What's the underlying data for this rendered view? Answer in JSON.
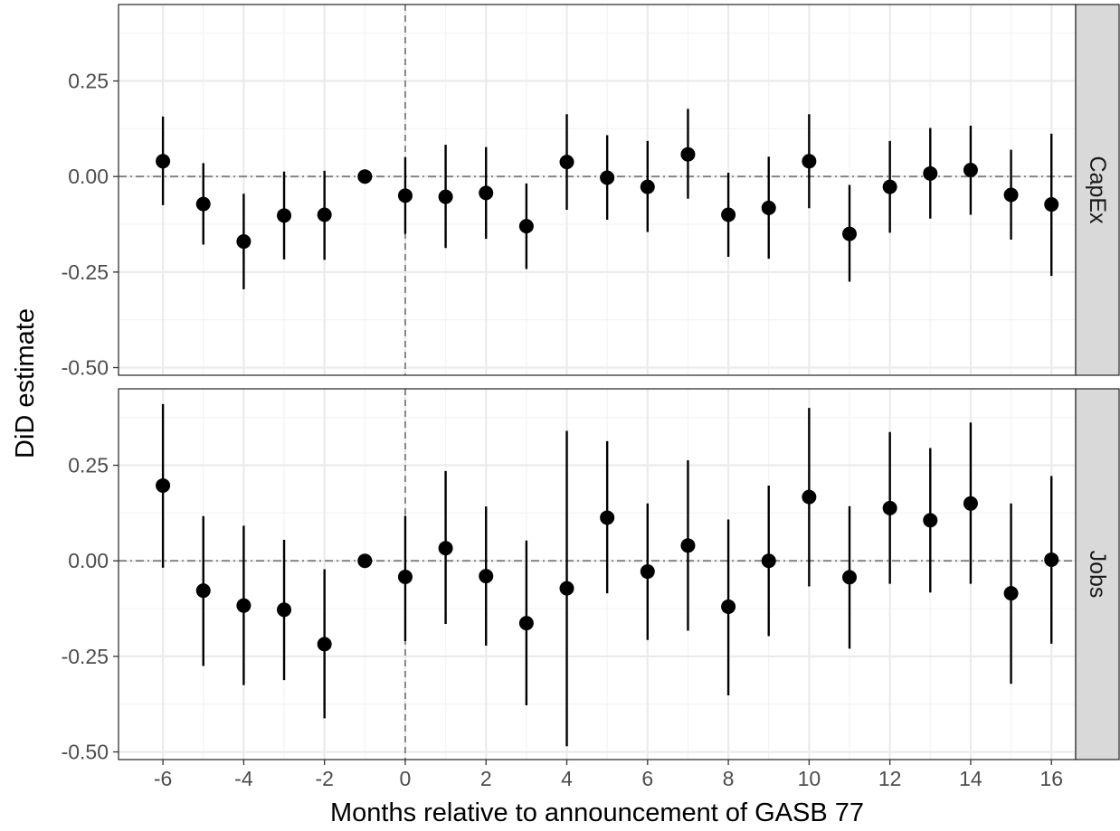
{
  "chart_data": {
    "type": "scatter",
    "subtype": "point-range faceted",
    "xlabel": "Months relative to announcement of GASB 77",
    "ylabel": "DiD estimate",
    "x_ticks": [
      -6,
      -4,
      -2,
      0,
      2,
      4,
      6,
      8,
      10,
      12,
      14,
      16
    ],
    "y_ticks": [
      -0.5,
      -0.25,
      0.0,
      0.25
    ],
    "y_tick_labels": [
      "-0.50",
      "-0.25",
      "0.00",
      "0.25"
    ],
    "x_tick_labels": [
      "-6",
      "-4",
      "-2",
      "0",
      "2",
      "4",
      "6",
      "8",
      "10",
      "12",
      "14",
      "16"
    ],
    "xlim": [
      -7.1,
      16.6
    ],
    "ylim": [
      -0.52,
      0.45
    ],
    "grid": true,
    "reference_lines": {
      "vertical_x": 0,
      "horizontal_y": 0
    },
    "panels": [
      {
        "name": "CapEx",
        "x": [
          -6,
          -5,
          -4,
          -3,
          -2,
          -1,
          0,
          1,
          2,
          3,
          4,
          5,
          6,
          7,
          8,
          9,
          10,
          11,
          12,
          13,
          14,
          15,
          16
        ],
        "estimate": [
          0.04,
          -0.072,
          -0.17,
          -0.102,
          -0.1,
          0.0,
          -0.05,
          -0.053,
          -0.043,
          -0.13,
          0.038,
          -0.003,
          -0.027,
          0.058,
          -0.1,
          -0.082,
          0.04,
          -0.15,
          -0.027,
          0.008,
          0.017,
          -0.048,
          -0.073
        ],
        "lower": [
          -0.075,
          -0.178,
          -0.295,
          -0.217,
          -0.218,
          0.0,
          -0.15,
          -0.187,
          -0.163,
          -0.242,
          -0.087,
          -0.113,
          -0.145,
          -0.058,
          -0.21,
          -0.215,
          -0.083,
          -0.275,
          -0.147,
          -0.11,
          -0.1,
          -0.165,
          -0.26
        ],
        "upper": [
          0.157,
          0.035,
          -0.045,
          0.013,
          0.015,
          0.0,
          0.05,
          0.083,
          0.077,
          -0.018,
          0.163,
          0.108,
          0.093,
          0.177,
          0.01,
          0.052,
          0.163,
          -0.022,
          0.093,
          0.127,
          0.133,
          0.07,
          0.112
        ]
      },
      {
        "name": "Jobs",
        "x": [
          -6,
          -5,
          -4,
          -3,
          -2,
          -1,
          0,
          1,
          2,
          3,
          4,
          5,
          6,
          7,
          8,
          9,
          10,
          11,
          12,
          13,
          14,
          15,
          16
        ],
        "estimate": [
          0.197,
          -0.078,
          -0.117,
          -0.128,
          -0.218,
          0.0,
          -0.042,
          0.033,
          -0.04,
          -0.163,
          -0.072,
          0.113,
          -0.028,
          0.04,
          -0.12,
          0.0,
          0.167,
          -0.043,
          0.138,
          0.106,
          0.15,
          -0.085,
          0.003
        ],
        "lower": [
          -0.018,
          -0.275,
          -0.325,
          -0.312,
          -0.412,
          0.0,
          -0.21,
          -0.165,
          -0.222,
          -0.378,
          -0.485,
          -0.085,
          -0.207,
          -0.183,
          -0.352,
          -0.197,
          -0.067,
          -0.23,
          -0.06,
          -0.083,
          -0.06,
          -0.322,
          -0.217
        ],
        "upper": [
          0.41,
          0.117,
          0.092,
          0.055,
          -0.022,
          0.0,
          0.118,
          0.235,
          0.142,
          0.053,
          0.34,
          0.313,
          0.15,
          0.263,
          0.108,
          0.197,
          0.4,
          0.143,
          0.337,
          0.295,
          0.362,
          0.15,
          0.222
        ]
      }
    ],
    "colors": {
      "point": "#000000",
      "errorbar": "#000000",
      "grid_major": "#ebebeb",
      "grid_minor": "#f3f3f3",
      "panel_border": "#333333",
      "strip_fill": "#d9d9d9",
      "ref_line": "#7f7f7f"
    }
  }
}
